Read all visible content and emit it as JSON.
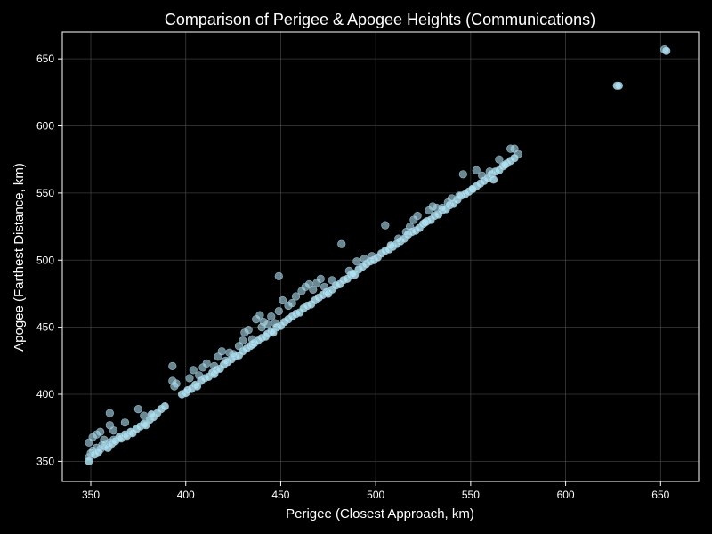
{
  "chart_data": {
    "type": "scatter",
    "title": "Comparison of Perigee & Apogee Heights (Communications)",
    "xlabel": "Perigee (Closest Approach, km)",
    "ylabel": "Apogee (Farthest Distance, km)",
    "xlim": [
      335,
      670
    ],
    "ylim": [
      335,
      670
    ],
    "xticks": [
      350,
      400,
      450,
      500,
      550,
      600,
      650
    ],
    "yticks": [
      350,
      400,
      450,
      500,
      550,
      600,
      650
    ],
    "grid": true,
    "colors": {
      "background": "#000000",
      "point": "#b0e0f0",
      "point_edge": "#8fb8c8",
      "grid": "#555555",
      "axes": "#ffffff"
    },
    "points": [
      [
        349,
        350
      ],
      [
        349,
        353
      ],
      [
        350,
        356
      ],
      [
        351,
        358
      ],
      [
        352,
        355
      ],
      [
        353,
        360
      ],
      [
        354,
        357
      ],
      [
        355,
        359
      ],
      [
        356,
        362
      ],
      [
        357,
        361
      ],
      [
        358,
        363
      ],
      [
        359,
        360
      ],
      [
        360,
        364
      ],
      [
        361,
        363
      ],
      [
        362,
        366
      ],
      [
        363,
        365
      ],
      [
        365,
        368
      ],
      [
        366,
        367
      ],
      [
        368,
        370
      ],
      [
        369,
        369
      ],
      [
        371,
        372
      ],
      [
        372,
        371
      ],
      [
        374,
        374
      ],
      [
        376,
        376
      ],
      [
        378,
        378
      ],
      [
        379,
        377
      ],
      [
        381,
        381
      ],
      [
        383,
        383
      ],
      [
        385,
        386
      ],
      [
        387,
        389
      ],
      [
        389,
        391
      ],
      [
        349,
        364
      ],
      [
        351,
        368
      ],
      [
        353,
        370
      ],
      [
        355,
        372
      ],
      [
        357,
        366
      ],
      [
        360,
        386
      ],
      [
        360,
        377
      ],
      [
        362,
        373
      ],
      [
        368,
        379
      ],
      [
        375,
        389
      ],
      [
        378,
        384
      ],
      [
        382,
        385
      ],
      [
        398,
        400
      ],
      [
        400,
        401
      ],
      [
        401,
        403
      ],
      [
        403,
        404
      ],
      [
        405,
        407
      ],
      [
        406,
        406
      ],
      [
        408,
        410
      ],
      [
        410,
        412
      ],
      [
        412,
        413
      ],
      [
        414,
        416
      ],
      [
        415,
        415
      ],
      [
        416,
        418
      ],
      [
        418,
        419
      ],
      [
        420,
        422
      ],
      [
        422,
        424
      ],
      [
        424,
        426
      ],
      [
        426,
        428
      ],
      [
        428,
        429
      ],
      [
        430,
        432
      ],
      [
        432,
        434
      ],
      [
        434,
        436
      ],
      [
        435,
        437
      ],
      [
        436,
        438
      ],
      [
        438,
        440
      ],
      [
        440,
        442
      ],
      [
        442,
        443
      ],
      [
        443,
        445
      ],
      [
        445,
        447
      ],
      [
        446,
        446
      ],
      [
        448,
        450
      ],
      [
        450,
        451
      ],
      [
        452,
        454
      ],
      [
        454,
        456
      ],
      [
        456,
        458
      ],
      [
        458,
        460
      ],
      [
        460,
        461
      ],
      [
        462,
        464
      ],
      [
        464,
        466
      ],
      [
        466,
        467
      ],
      [
        468,
        470
      ],
      [
        470,
        472
      ],
      [
        472,
        474
      ],
      [
        474,
        476
      ],
      [
        475,
        475
      ],
      [
        477,
        478
      ],
      [
        479,
        481
      ],
      [
        481,
        482
      ],
      [
        483,
        485
      ],
      [
        485,
        486
      ],
      [
        487,
        489
      ],
      [
        489,
        489
      ],
      [
        393,
        421
      ],
      [
        393,
        410
      ],
      [
        394,
        406
      ],
      [
        395,
        408
      ],
      [
        402,
        412
      ],
      [
        404,
        418
      ],
      [
        407,
        414
      ],
      [
        409,
        420
      ],
      [
        411,
        423
      ],
      [
        415,
        421
      ],
      [
        417,
        428
      ],
      [
        419,
        432
      ],
      [
        421,
        425
      ],
      [
        423,
        431
      ],
      [
        425,
        430
      ],
      [
        428,
        436
      ],
      [
        430,
        440
      ],
      [
        431,
        446
      ],
      [
        433,
        448
      ],
      [
        435,
        441
      ],
      [
        437,
        456
      ],
      [
        439,
        459
      ],
      [
        440,
        450
      ],
      [
        441,
        454
      ],
      [
        443,
        452
      ],
      [
        445,
        458
      ],
      [
        447,
        453
      ],
      [
        449,
        462
      ],
      [
        451,
        470
      ],
      [
        449,
        488
      ],
      [
        454,
        466
      ],
      [
        456,
        468
      ],
      [
        458,
        473
      ],
      [
        461,
        477
      ],
      [
        463,
        480
      ],
      [
        465,
        482
      ],
      [
        467,
        478
      ],
      [
        469,
        483
      ],
      [
        471,
        486
      ],
      [
        473,
        480
      ],
      [
        477,
        485
      ],
      [
        482,
        512
      ],
      [
        486,
        492
      ],
      [
        488,
        490
      ],
      [
        491,
        493
      ],
      [
        493,
        495
      ],
      [
        495,
        497
      ],
      [
        497,
        499
      ],
      [
        499,
        500
      ],
      [
        501,
        502
      ],
      [
        503,
        505
      ],
      [
        505,
        507
      ],
      [
        507,
        508
      ],
      [
        509,
        510
      ],
      [
        511,
        512
      ],
      [
        513,
        514
      ],
      [
        515,
        516
      ],
      [
        517,
        519
      ],
      [
        519,
        521
      ],
      [
        521,
        522
      ],
      [
        523,
        524
      ],
      [
        525,
        527
      ],
      [
        527,
        529
      ],
      [
        529,
        530
      ],
      [
        531,
        533
      ],
      [
        533,
        534
      ],
      [
        535,
        537
      ],
      [
        537,
        538
      ],
      [
        539,
        541
      ],
      [
        541,
        542
      ],
      [
        543,
        545
      ],
      [
        545,
        548
      ],
      [
        547,
        549
      ],
      [
        549,
        551
      ],
      [
        551,
        553
      ],
      [
        553,
        555
      ],
      [
        555,
        557
      ],
      [
        557,
        559
      ],
      [
        559,
        561
      ],
      [
        561,
        564
      ],
      [
        563,
        566
      ],
      [
        565,
        567
      ],
      [
        567,
        570
      ],
      [
        569,
        572
      ],
      [
        571,
        574
      ],
      [
        573,
        576
      ],
      [
        575,
        579
      ],
      [
        490,
        499
      ],
      [
        494,
        501
      ],
      [
        498,
        503
      ],
      [
        505,
        526
      ],
      [
        508,
        511
      ],
      [
        512,
        516
      ],
      [
        516,
        521
      ],
      [
        518,
        525
      ],
      [
        520,
        530
      ],
      [
        522,
        533
      ],
      [
        526,
        528
      ],
      [
        528,
        537
      ],
      [
        530,
        540
      ],
      [
        532,
        539
      ],
      [
        535,
        539
      ],
      [
        538,
        543
      ],
      [
        540,
        546
      ],
      [
        544,
        548
      ],
      [
        546,
        564
      ],
      [
        551,
        553
      ],
      [
        553,
        567
      ],
      [
        556,
        563
      ],
      [
        560,
        566
      ],
      [
        562,
        560
      ],
      [
        565,
        575
      ],
      [
        568,
        571
      ],
      [
        571,
        583
      ],
      [
        573,
        583
      ],
      [
        627,
        630
      ],
      [
        628,
        630
      ],
      [
        652,
        657
      ],
      [
        653,
        656
      ]
    ]
  }
}
